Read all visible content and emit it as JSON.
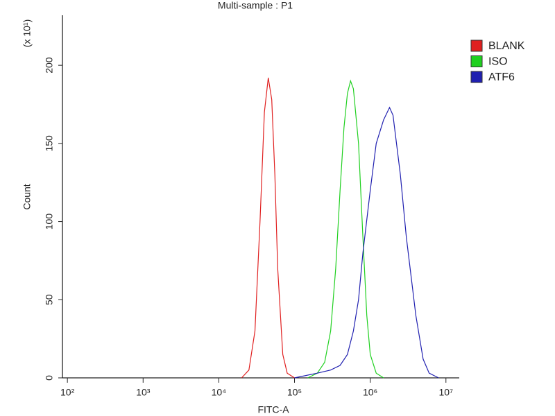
{
  "chart_data": {
    "type": "line",
    "title": "Multi-sample : P1",
    "xlabel": "FITC-A",
    "ylabel": "Count",
    "y_multiplier_label": "(x 10¹)",
    "xscale": "log",
    "xlim": [
      86,
      15000000
    ],
    "ylim": [
      0,
      232
    ],
    "legend": "right",
    "xticks": [
      {
        "value": 100,
        "label": "10²"
      },
      {
        "value": 1000,
        "label": "10³"
      },
      {
        "value": 10000,
        "label": "10⁴"
      },
      {
        "value": 100000,
        "label": "10⁵"
      },
      {
        "value": 1000000,
        "label": "10⁶"
      },
      {
        "value": 10000000,
        "label": "10⁷"
      }
    ],
    "yticks": [
      0,
      50,
      100,
      150,
      200
    ],
    "series": [
      {
        "name": "BLANK",
        "color": "#e02020",
        "x": [
          20000,
          25000,
          30000,
          35000,
          40000,
          45000,
          50000,
          55000,
          60000,
          70000,
          80000,
          100000
        ],
        "values": [
          0,
          5,
          30,
          100,
          170,
          192,
          178,
          130,
          70,
          15,
          3,
          0
        ]
      },
      {
        "name": "ISO",
        "color": "#20d020",
        "x": [
          150000,
          200000,
          250000,
          300000,
          350000,
          400000,
          450000,
          500000,
          550000,
          600000,
          700000,
          800000,
          900000,
          1000000,
          1200000,
          1500000
        ],
        "values": [
          0,
          3,
          10,
          30,
          70,
          120,
          160,
          182,
          190,
          185,
          150,
          90,
          40,
          15,
          3,
          0
        ]
      },
      {
        "name": "ATF6",
        "color": "#2020b0",
        "x": [
          100000,
          200000,
          300000,
          400000,
          500000,
          600000,
          700000,
          800000,
          1000000,
          1200000,
          1500000,
          1800000,
          2000000,
          2500000,
          3000000,
          4000000,
          5000000,
          6000000,
          8000000
        ],
        "values": [
          0,
          3,
          5,
          8,
          15,
          30,
          50,
          80,
          120,
          150,
          165,
          173,
          168,
          130,
          90,
          40,
          12,
          3,
          0
        ]
      }
    ]
  }
}
